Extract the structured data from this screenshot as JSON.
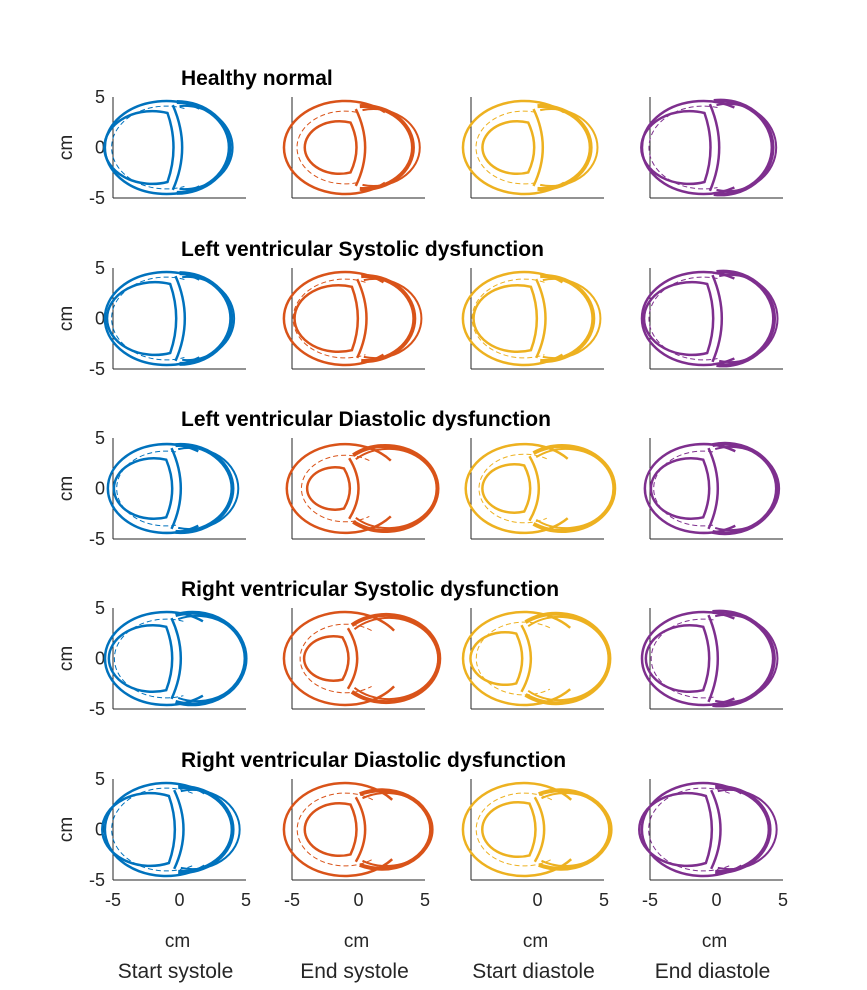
{
  "chart_data": {
    "type": "line",
    "description_units": "cm",
    "colors": [
      "#0072BD",
      "#D95319",
      "#EDB120",
      "#7E2F8E"
    ],
    "columns": [
      "Start systole",
      "End systole",
      "Start diastole",
      "End diastole"
    ],
    "x_label": "cm",
    "y_label": "cm",
    "xlim": [
      -5,
      5
    ],
    "ylim": [
      -5,
      5
    ],
    "y_ticks": [
      "5",
      "0",
      "-5"
    ],
    "x_ticks": [
      [
        "-5",
        "0",
        "5"
      ],
      [
        "-5",
        "0",
        "5"
      ],
      [
        "0",
        "5"
      ],
      [
        "-5",
        "0",
        "5"
      ]
    ],
    "x_tick_values": [
      [
        -5,
        0,
        5
      ],
      [
        -5,
        0,
        5
      ],
      [
        0,
        5
      ],
      [
        -5,
        0,
        5
      ]
    ],
    "rows": [
      {
        "title": "Healthy normal",
        "panels": [
          {
            "sep_x": -0.5,
            "sep_h": 4.2,
            "lv_in": 3.6,
            "lv_mid": 4.1,
            "lv_out": 4.6,
            "rv_out": 4.6,
            "rv_cx": 1.6,
            "rv_ry": 4.1
          },
          {
            "sep_x": -0.2,
            "sep_h": 3.8,
            "lv_in": 2.6,
            "lv_mid": 3.6,
            "lv_out": 4.6,
            "rv_out": 4.4,
            "rv_cx": 2.2,
            "rv_ry": 3.8
          },
          {
            "sep_x": -0.3,
            "sep_h": 3.8,
            "lv_in": 2.6,
            "lv_mid": 3.6,
            "lv_out": 4.6,
            "rv_out": 4.4,
            "rv_cx": 2.2,
            "rv_ry": 3.8
          },
          {
            "sep_x": -0.5,
            "sep_h": 4.3,
            "lv_in": 3.6,
            "lv_mid": 4.1,
            "lv_out": 4.6,
            "rv_out": 4.6,
            "rv_cx": 1.6,
            "rv_ry": 4.3
          }
        ]
      },
      {
        "title": "Left ventricular Systolic dysfunction",
        "panels": [
          {
            "sep_x": -0.3,
            "sep_h": 4.2,
            "lv_in": 3.6,
            "lv_mid": 4.1,
            "lv_out": 4.6,
            "rv_out": 4.5,
            "rv_cx": 1.7,
            "rv_ry": 4.1
          },
          {
            "sep_x": -0.1,
            "sep_h": 3.9,
            "lv_in": 3.3,
            "lv_mid": 3.9,
            "lv_out": 4.6,
            "rv_out": 4.4,
            "rv_cx": 2.1,
            "rv_ry": 3.9
          },
          {
            "sep_x": -0.1,
            "sep_h": 3.9,
            "lv_in": 3.3,
            "lv_mid": 3.9,
            "lv_out": 4.6,
            "rv_out": 4.4,
            "rv_cx": 2.1,
            "rv_ry": 3.9
          },
          {
            "sep_x": -0.3,
            "sep_h": 4.3,
            "lv_in": 3.6,
            "lv_mid": 4.1,
            "lv_out": 4.6,
            "rv_out": 4.5,
            "rv_cx": 1.7,
            "rv_ry": 4.3
          }
        ]
      },
      {
        "title": "Left ventricular Diastolic dysfunction",
        "panels": [
          {
            "sep_x": -0.6,
            "sep_h": 4.0,
            "lv_in": 3.0,
            "lv_mid": 3.7,
            "lv_out": 4.4,
            "rv_out": 4.6,
            "rv_cx": 1.5,
            "rv_ry": 4.0
          },
          {
            "sep_x": -0.7,
            "sep_h": 3.0,
            "lv_in": 2.1,
            "lv_mid": 3.3,
            "lv_out": 4.4,
            "rv_out": 4.6,
            "rv_cx": 1.9,
            "rv_ry": 3.9
          },
          {
            "sep_x": -0.6,
            "sep_h": 3.2,
            "lv_in": 2.4,
            "lv_mid": 3.4,
            "lv_out": 4.4,
            "rv_out": 4.6,
            "rv_cx": 1.9,
            "rv_ry": 3.9
          },
          {
            "sep_x": -0.6,
            "sep_h": 4.0,
            "lv_in": 3.0,
            "lv_mid": 3.7,
            "lv_out": 4.4,
            "rv_out": 4.6,
            "rv_cx": 1.5,
            "rv_ry": 4.1
          }
        ]
      },
      {
        "title": "Right ventricular Systolic dysfunction",
        "panels": [
          {
            "sep_x": -0.6,
            "sep_h": 4.0,
            "lv_in": 3.3,
            "lv_mid": 3.9,
            "lv_out": 4.6,
            "rv_out": 4.7,
            "rv_cx": 1.6,
            "rv_ry": 4.2
          },
          {
            "sep_x": -0.8,
            "sep_h": 3.0,
            "lv_in": 2.2,
            "lv_mid": 3.4,
            "lv_out": 4.6,
            "rv_out": 4.7,
            "rv_cx": 1.8,
            "rv_ry": 4.0
          },
          {
            "sep_x": -1.2,
            "sep_h": 3.3,
            "lv_in": 2.6,
            "lv_mid": 3.6,
            "lv_out": 4.6,
            "rv_out": 4.7,
            "rv_cx": 1.7,
            "rv_ry": 4.1
          },
          {
            "sep_x": -0.6,
            "sep_h": 4.3,
            "lv_in": 3.3,
            "lv_mid": 3.9,
            "lv_out": 4.6,
            "rv_out": 4.8,
            "rv_cx": 1.5,
            "rv_ry": 4.3
          }
        ]
      },
      {
        "title": "Right ventricular Diastolic dysfunction",
        "panels": [
          {
            "sep_x": -0.4,
            "sep_h": 3.9,
            "lv_in": 3.6,
            "lv_mid": 4.1,
            "lv_out": 4.6,
            "rv_out": 4.5,
            "rv_cx": 1.8,
            "rv_ry": 3.9
          },
          {
            "sep_x": -0.2,
            "sep_h": 3.2,
            "lv_in": 2.6,
            "lv_mid": 3.6,
            "lv_out": 4.6,
            "rv_out": 4.4,
            "rv_cx": 2.0,
            "rv_ry": 3.6
          },
          {
            "sep_x": -0.2,
            "sep_h": 3.2,
            "lv_in": 2.7,
            "lv_mid": 3.6,
            "lv_out": 4.6,
            "rv_out": 4.4,
            "rv_cx": 2.0,
            "rv_ry": 3.6
          },
          {
            "sep_x": -0.4,
            "sep_h": 3.9,
            "lv_in": 3.6,
            "lv_mid": 4.1,
            "lv_out": 4.6,
            "rv_out": 4.5,
            "rv_cx": 1.8,
            "rv_ry": 3.9
          }
        ]
      }
    ]
  }
}
